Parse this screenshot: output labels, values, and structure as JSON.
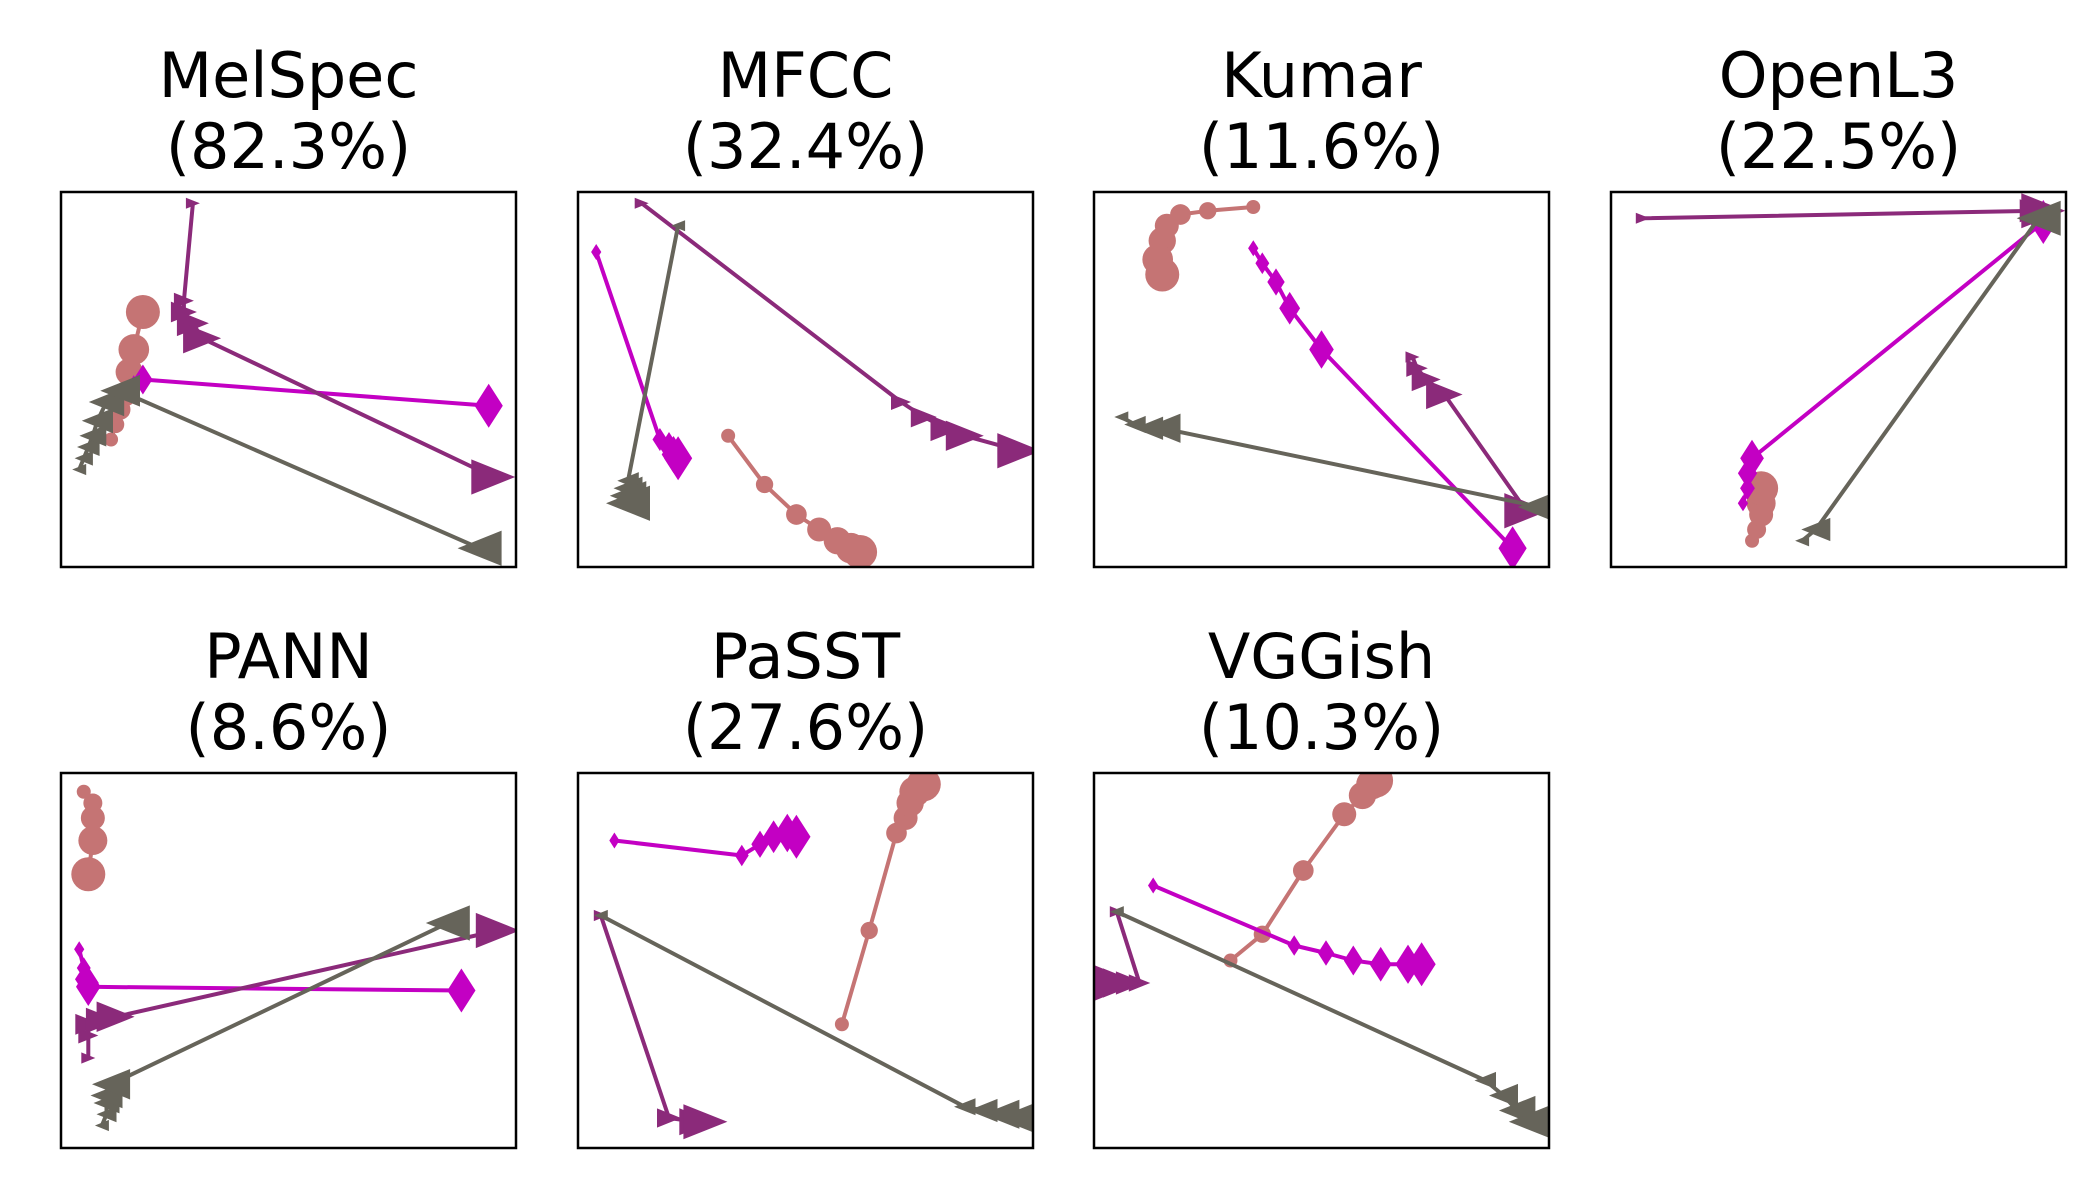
{
  "colors": {
    "circle": "#c57474",
    "diamond": "#c300c3",
    "triangle_right": "#8b2a7a",
    "triangle_left": "#66645a"
  },
  "chart_data": [
    {
      "type": "line",
      "name": "MelSpec",
      "score": "(82.3%)",
      "xlim": [
        0,
        1
      ],
      "ylim": [
        0,
        1
      ],
      "series": [
        {
          "marker": "circle",
          "points": [
            [
              0.11,
              0.34
            ],
            [
              0.12,
              0.38
            ],
            [
              0.13,
              0.42
            ],
            [
              0.14,
              0.46
            ],
            [
              0.15,
              0.52
            ],
            [
              0.16,
              0.58
            ],
            [
              0.18,
              0.68
            ]
          ]
        },
        {
          "marker": "diamond",
          "points": [
            [
              0.16,
              0.49
            ],
            [
              0.18,
              0.5
            ],
            [
              0.94,
              0.43
            ]
          ]
        },
        {
          "marker": "triangle_right",
          "points": [
            [
              0.29,
              0.97
            ],
            [
              0.27,
              0.71
            ],
            [
              0.27,
              0.68
            ],
            [
              0.29,
              0.65
            ],
            [
              0.31,
              0.61
            ],
            [
              0.95,
              0.24
            ]
          ]
        },
        {
          "marker": "triangle_left",
          "points": [
            [
              0.04,
              0.26
            ],
            [
              0.05,
              0.29
            ],
            [
              0.06,
              0.32
            ],
            [
              0.07,
              0.35
            ],
            [
              0.08,
              0.39
            ],
            [
              0.1,
              0.44
            ],
            [
              0.13,
              0.47
            ],
            [
              0.92,
              0.05
            ]
          ]
        }
      ]
    },
    {
      "type": "line",
      "name": "MFCC",
      "score": "(32.4%)",
      "xlim": [
        0,
        1
      ],
      "ylim": [
        0,
        1
      ],
      "series": [
        {
          "marker": "circle",
          "points": [
            [
              0.33,
              0.35
            ],
            [
              0.41,
              0.22
            ],
            [
              0.48,
              0.14
            ],
            [
              0.53,
              0.1
            ],
            [
              0.57,
              0.07
            ],
            [
              0.6,
              0.05
            ],
            [
              0.62,
              0.04
            ]
          ]
        },
        {
          "marker": "diamond",
          "points": [
            [
              0.04,
              0.84
            ],
            [
              0.18,
              0.34
            ],
            [
              0.2,
              0.32
            ],
            [
              0.21,
              0.3
            ],
            [
              0.22,
              0.29
            ]
          ]
        },
        {
          "marker": "triangle_right",
          "points": [
            [
              0.14,
              0.97
            ],
            [
              0.71,
              0.44
            ],
            [
              0.76,
              0.4
            ],
            [
              0.81,
              0.37
            ],
            [
              0.85,
              0.35
            ],
            [
              0.97,
              0.31
            ]
          ]
        },
        {
          "marker": "triangle_left",
          "points": [
            [
              0.22,
              0.91
            ],
            [
              0.11,
              0.23
            ],
            [
              0.11,
              0.21
            ],
            [
              0.11,
              0.19
            ],
            [
              0.11,
              0.17
            ]
          ]
        }
      ]
    },
    {
      "type": "line",
      "name": "Kumar",
      "score": "(11.6%)",
      "xlim": [
        0,
        1
      ],
      "ylim": [
        0,
        1
      ],
      "series": [
        {
          "marker": "circle",
          "points": [
            [
              0.35,
              0.96
            ],
            [
              0.25,
              0.95
            ],
            [
              0.19,
              0.94
            ],
            [
              0.16,
              0.91
            ],
            [
              0.15,
              0.87
            ],
            [
              0.14,
              0.82
            ],
            [
              0.15,
              0.78
            ]
          ]
        },
        {
          "marker": "diamond",
          "points": [
            [
              0.35,
              0.85
            ],
            [
              0.37,
              0.81
            ],
            [
              0.4,
              0.76
            ],
            [
              0.43,
              0.69
            ],
            [
              0.5,
              0.58
            ],
            [
              0.92,
              0.05
            ]
          ]
        },
        {
          "marker": "triangle_right",
          "points": [
            [
              0.7,
              0.56
            ],
            [
              0.71,
              0.53
            ],
            [
              0.73,
              0.5
            ],
            [
              0.77,
              0.46
            ],
            [
              0.95,
              0.15
            ]
          ]
        },
        {
          "marker": "triangle_left",
          "points": [
            [
              0.06,
              0.4
            ],
            [
              0.09,
              0.38
            ],
            [
              0.12,
              0.37
            ],
            [
              0.15,
              0.37
            ],
            [
              0.98,
              0.16
            ]
          ]
        }
      ]
    },
    {
      "type": "line",
      "name": "OpenL3",
      "score": "(22.5%)",
      "xlim": [
        0,
        1
      ],
      "ylim": [
        0,
        1
      ],
      "series": [
        {
          "marker": "circle",
          "points": [
            [
              0.31,
              0.07
            ],
            [
              0.32,
              0.1
            ],
            [
              0.33,
              0.14
            ],
            [
              0.33,
              0.17
            ],
            [
              0.33,
              0.21
            ]
          ]
        },
        {
          "marker": "diamond",
          "points": [
            [
              0.29,
              0.17
            ],
            [
              0.3,
              0.21
            ],
            [
              0.3,
              0.25
            ],
            [
              0.31,
              0.29
            ],
            [
              0.95,
              0.92
            ]
          ]
        },
        {
          "marker": "triangle_right",
          "points": [
            [
              0.07,
              0.93
            ],
            [
              0.93,
              0.95
            ],
            [
              0.95,
              0.95
            ]
          ]
        },
        {
          "marker": "triangle_left",
          "points": [
            [
              0.42,
              0.07
            ],
            [
              0.45,
              0.1
            ],
            [
              0.94,
              0.93
            ]
          ]
        }
      ]
    },
    {
      "type": "line",
      "name": "PANN",
      "score": "(8.6%)",
      "xlim": [
        0,
        1
      ],
      "ylim": [
        0,
        1
      ],
      "series": [
        {
          "marker": "circle",
          "points": [
            [
              0.05,
              0.95
            ],
            [
              0.07,
              0.92
            ],
            [
              0.07,
              0.88
            ],
            [
              0.07,
              0.82
            ],
            [
              0.06,
              0.73
            ]
          ]
        },
        {
          "marker": "diamond",
          "points": [
            [
              0.04,
              0.53
            ],
            [
              0.05,
              0.48
            ],
            [
              0.05,
              0.45
            ],
            [
              0.06,
              0.44
            ],
            [
              0.06,
              0.43
            ],
            [
              0.88,
              0.42
            ]
          ]
        },
        {
          "marker": "triangle_right",
          "points": [
            [
              0.06,
              0.24
            ],
            [
              0.06,
              0.3
            ],
            [
              0.06,
              0.33
            ],
            [
              0.09,
              0.34
            ],
            [
              0.12,
              0.35
            ],
            [
              0.96,
              0.58
            ]
          ]
        },
        {
          "marker": "triangle_left",
          "points": [
            [
              0.09,
              0.06
            ],
            [
              0.1,
              0.09
            ],
            [
              0.1,
              0.12
            ],
            [
              0.1,
              0.14
            ],
            [
              0.11,
              0.17
            ],
            [
              0.85,
              0.6
            ]
          ]
        }
      ]
    },
    {
      "type": "line",
      "name": "PaSST",
      "score": "(27.6%)",
      "xlim": [
        0,
        1
      ],
      "ylim": [
        0,
        1
      ],
      "series": [
        {
          "marker": "circle",
          "points": [
            [
              0.58,
              0.33
            ],
            [
              0.64,
              0.58
            ],
            [
              0.7,
              0.84
            ],
            [
              0.72,
              0.88
            ],
            [
              0.73,
              0.92
            ],
            [
              0.74,
              0.95
            ],
            [
              0.76,
              0.97
            ]
          ]
        },
        {
          "marker": "diamond",
          "points": [
            [
              0.08,
              0.82
            ],
            [
              0.36,
              0.78
            ],
            [
              0.4,
              0.81
            ],
            [
              0.43,
              0.83
            ],
            [
              0.46,
              0.84
            ],
            [
              0.48,
              0.83
            ]
          ]
        },
        {
          "marker": "triangle_right",
          "points": [
            [
              0.05,
              0.62
            ],
            [
              0.2,
              0.08
            ],
            [
              0.26,
              0.07
            ],
            [
              0.28,
              0.07
            ]
          ]
        },
        {
          "marker": "triangle_left",
          "points": [
            [
              0.05,
              0.62
            ],
            [
              0.85,
              0.11
            ],
            [
              0.89,
              0.1
            ],
            [
              0.93,
              0.09
            ],
            [
              0.97,
              0.08
            ]
          ]
        }
      ]
    },
    {
      "type": "line",
      "name": "VGGish",
      "score": "(10.3%)",
      "xlim": [
        0,
        1
      ],
      "ylim": [
        0,
        1
      ],
      "series": [
        {
          "marker": "circle",
          "points": [
            [
              0.3,
              0.5
            ],
            [
              0.37,
              0.57
            ],
            [
              0.46,
              0.74
            ],
            [
              0.55,
              0.89
            ],
            [
              0.59,
              0.94
            ],
            [
              0.61,
              0.97
            ],
            [
              0.62,
              0.98
            ]
          ]
        },
        {
          "marker": "diamond",
          "points": [
            [
              0.13,
              0.7
            ],
            [
              0.44,
              0.54
            ],
            [
              0.51,
              0.52
            ],
            [
              0.57,
              0.5
            ],
            [
              0.63,
              0.49
            ],
            [
              0.69,
              0.49
            ],
            [
              0.72,
              0.49
            ]
          ]
        },
        {
          "marker": "triangle_right",
          "points": [
            [
              0.05,
              0.63
            ],
            [
              0.1,
              0.44
            ],
            [
              0.08,
              0.44
            ],
            [
              0.06,
              0.44
            ],
            [
              0.05,
              0.44
            ]
          ]
        },
        {
          "marker": "triangle_left",
          "points": [
            [
              0.05,
              0.63
            ],
            [
              0.86,
              0.18
            ],
            [
              0.9,
              0.14
            ],
            [
              0.93,
              0.1
            ],
            [
              0.96,
              0.07
            ]
          ]
        }
      ]
    }
  ]
}
